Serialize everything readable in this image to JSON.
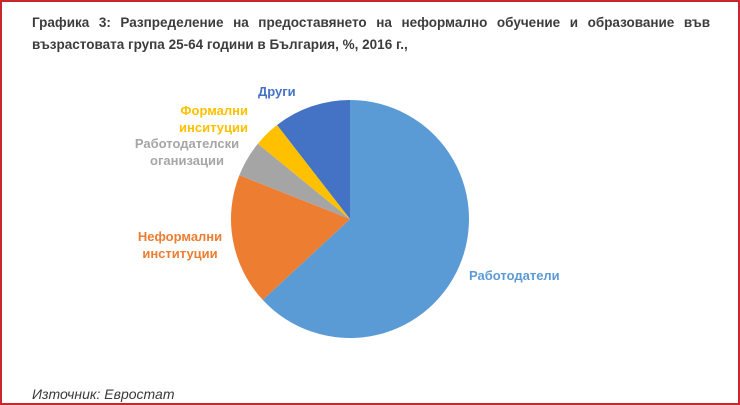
{
  "title": {
    "line1": "Графика 3: Разпределение на предоставянето на неформално обучение и образование във",
    "line2": "възрастовата група 25-64 години в България, %, 2016 г.,"
  },
  "source": "Източник: Евростат",
  "colors": {
    "employers": "#5B9BD5",
    "informal_institutions": "#ED7D31",
    "employer_organisations": "#A5A5A5",
    "formal_institutions": "#FFC000",
    "other": "#4472C4",
    "frame_border": "#C9262D",
    "title_text": "#3C3C3C",
    "employer_orgs_label": "#A6A6A6"
  },
  "chart_data": {
    "type": "pie",
    "title": "Разпределение на предоставянето на неформално обучение и образование, възрастова група 25-64 години, България, %, 2016 г.",
    "categories": [
      "Работодатели",
      "Неформални институции",
      "Работодателски оганизации",
      "Формални инситуции",
      "Други"
    ],
    "values": [
      63.1,
      17.9,
      4.9,
      3.6,
      10.5
    ],
    "unit": "%",
    "colors": [
      "#5B9BD5",
      "#ED7D31",
      "#A5A5A5",
      "#FFC000",
      "#4472C4"
    ],
    "slice_keys": [
      "employers",
      "informal-institutions",
      "employer-organisations",
      "formal-institutions",
      "other"
    ],
    "start_angle_deg": 0,
    "direction": "clockwise",
    "legend_position": "labels-around-pie",
    "grid": false
  },
  "slice_labels": {
    "other": [
      "Други"
    ],
    "formal": [
      "Формални",
      "инситуции"
    ],
    "employer_orgs": [
      "Работодателски",
      "оганизации"
    ],
    "informal": [
      "Неформални",
      "институции"
    ],
    "employers": [
      "Работодатели"
    ]
  }
}
